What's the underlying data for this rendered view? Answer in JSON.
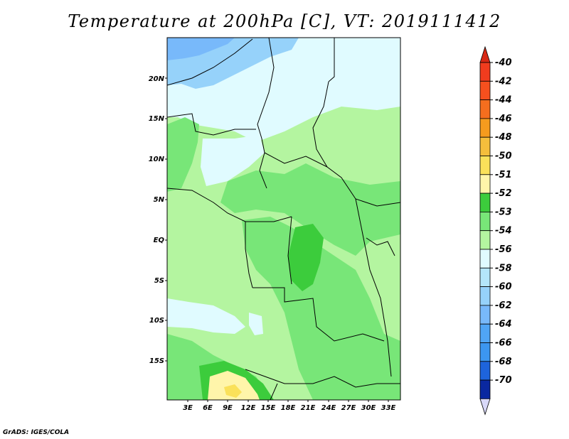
{
  "title": "Temperature at 200hPa [C], VT: 2019111412",
  "footer": "GrADS: IGES/COLA",
  "map": {
    "lat_labels": [
      "20N",
      "15N",
      "10N",
      "5N",
      "EQ",
      "5S",
      "10S",
      "15S"
    ],
    "lon_labels": [
      "3E",
      "6E",
      "9E",
      "12E",
      "15E",
      "18E",
      "21E",
      "24E",
      "27E",
      "30E",
      "33E"
    ]
  },
  "colorbar": {
    "levels": [
      {
        "label": "-40",
        "color": "#f03c1e"
      },
      {
        "label": "-42",
        "color": "#f5501e"
      },
      {
        "label": "-44",
        "color": "#f56e1e"
      },
      {
        "label": "-46",
        "color": "#f59b1e"
      },
      {
        "label": "-48",
        "color": "#f5be3c"
      },
      {
        "label": "-50",
        "color": "#fae15a"
      },
      {
        "label": "-51",
        "color": "#fff5aa"
      },
      {
        "label": "-52",
        "color": "#3ccc3c"
      },
      {
        "label": "-53",
        "color": "#78e678"
      },
      {
        "label": "-54",
        "color": "#b4f5a0"
      },
      {
        "label": "-56",
        "color": "#e0fbff"
      },
      {
        "label": "-58",
        "color": "#b4e6fa"
      },
      {
        "label": "-60",
        "color": "#96d2fa"
      },
      {
        "label": "-62",
        "color": "#78b9fa"
      },
      {
        "label": "-64",
        "color": "#50a5f5"
      },
      {
        "label": "-66",
        "color": "#3c96f0"
      },
      {
        "label": "-68",
        "color": "#1e64dc"
      },
      {
        "label": "-70",
        "color": "#0a28a0"
      }
    ],
    "bottom_cap_color": "#d8d8f8",
    "top_cap_color": "#d72814"
  }
}
